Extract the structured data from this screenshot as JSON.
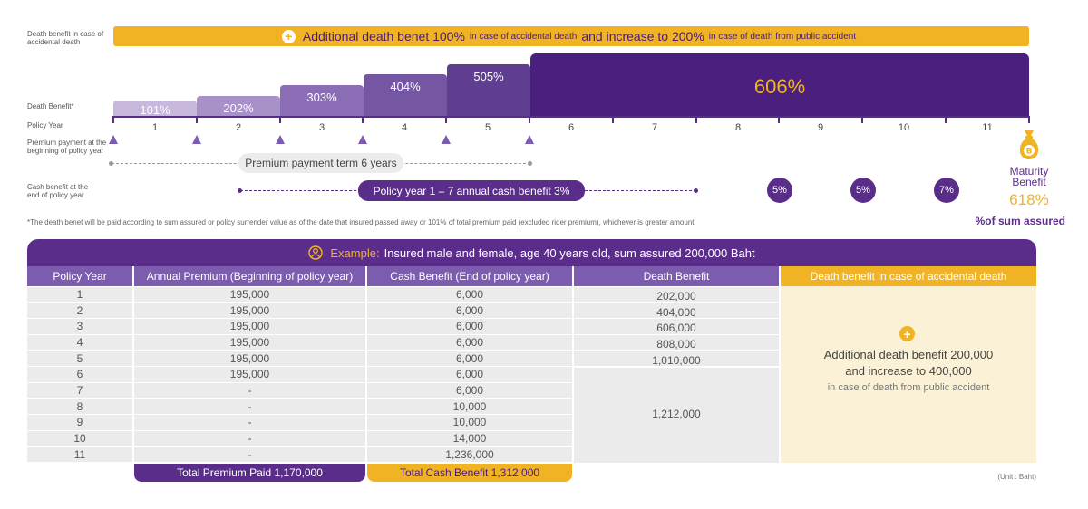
{
  "labels": {
    "accidental_left": "Death benefit in case of accidental death",
    "death_benefit_left": "Death Benefit*",
    "policy_year_left": "Policy Year",
    "premium_left": "Premium payment at the beginning of policy year",
    "cash_left": "Cash benefit at the end of policy year"
  },
  "band": {
    "part1": "Additional death benet 100%",
    "part2": "in case of accidental death",
    "part3": "and increase to 200%",
    "part4": "in case of death from public accident"
  },
  "death_steps": [
    {
      "label": "101%",
      "value": 101,
      "color": "#c7b8dc"
    },
    {
      "label": "202%",
      "value": 202,
      "color": "#a891c9"
    },
    {
      "label": "303%",
      "value": 303,
      "color": "#8a6db5"
    },
    {
      "label": "404%",
      "value": 404,
      "color": "#7556a3"
    },
    {
      "label": "505%",
      "value": 505,
      "color": "#5f3d91"
    },
    {
      "label": "606%",
      "value": 606,
      "color": "#4b1f7d"
    }
  ],
  "years": [
    "1",
    "2",
    "3",
    "4",
    "5",
    "6",
    "7",
    "8",
    "9",
    "10",
    "11"
  ],
  "premium_term": "Premium payment term 6 years",
  "cash_benefit": "Policy year 1 – 7 annual cash benefit 3%",
  "cash_circles": [
    "5%",
    "5%",
    "7%"
  ],
  "maturity": {
    "title": "Maturity Benefit",
    "value": "618%",
    "unit": "%of sum assured",
    "icon": "money-bag-icon"
  },
  "footnote": "*The death benet will be paid according to sum assured or policy surrender value as of the date that insured passed away or 101% of total premium paid (excluded rider premium), whichever is greater amount",
  "example": {
    "label": "Example:",
    "text": "Insured male and female, age 40 years old, sum assured 200,000 Baht",
    "icon": "person-icon"
  },
  "table": {
    "headers": [
      "Policy Year",
      "Annual Premium (Beginning of policy year)",
      "Cash Benefit (End of policy year)",
      "Death Benefit",
      "Death benefit in case of accidental death"
    ],
    "years": [
      "1",
      "2",
      "3",
      "4",
      "5",
      "6",
      "7",
      "8",
      "9",
      "10",
      "11"
    ],
    "premium": [
      "195,000",
      "195,000",
      "195,000",
      "195,000",
      "195,000",
      "195,000",
      "-",
      "-",
      "-",
      "-",
      "-"
    ],
    "cash": [
      "6,000",
      "6,000",
      "6,000",
      "6,000",
      "6,000",
      "6,000",
      "6,000",
      "10,000",
      "10,000",
      "14,000",
      "1,236,000"
    ],
    "death": [
      "202,000",
      "404,000",
      "606,000",
      "808,000",
      "1,010,000"
    ],
    "death_rest": "1,212,000",
    "accidental_line1": "Additional death benefit 200,000",
    "accidental_line2": "and increase to 400,000",
    "accidental_line3": "in case of death from public accident",
    "total_premium": "Total Premium Paid 1,170,000",
    "total_cash": "Total Cash Benefit 1,312,000",
    "unit": "(Unit : Baht)"
  },
  "colors": {
    "purple": "#5b2d8a",
    "yellow": "#f0b323",
    "light_purple": "#7c5cae"
  }
}
